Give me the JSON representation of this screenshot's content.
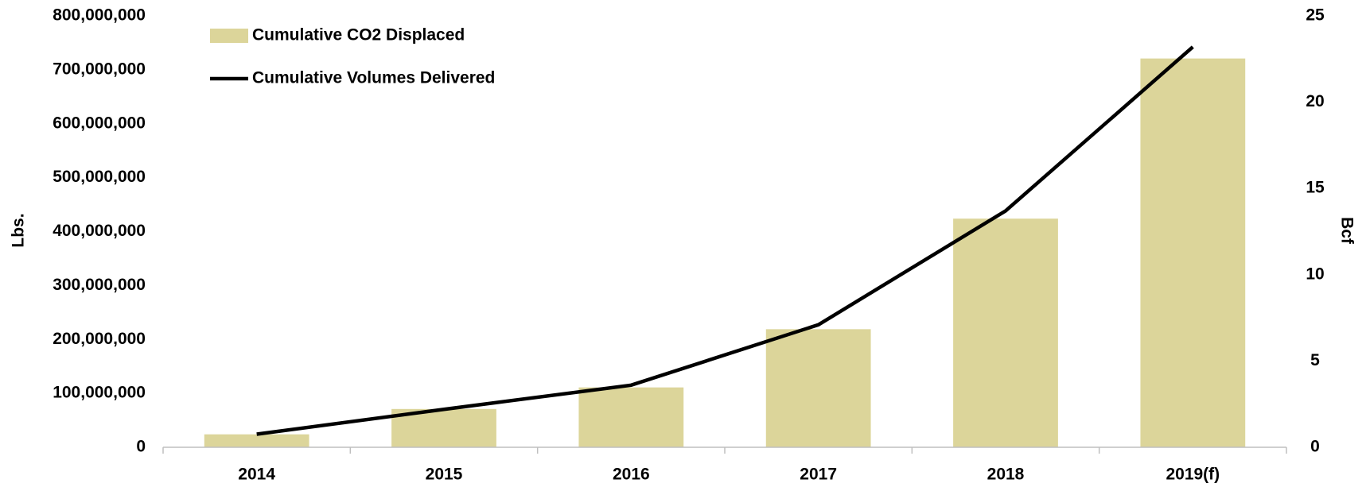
{
  "chart_data": {
    "type": "bar",
    "categories": [
      "2014",
      "2015",
      "2016",
      "2017",
      "2018",
      "2019(f)"
    ],
    "ylabel": "Lbs.",
    "y2label": "Bcf",
    "series": [
      {
        "name": "Cumulative CO2 Displaced",
        "type": "bar",
        "color": "#dcd59a",
        "values": [
          24000000,
          71000000,
          111000000,
          219000000,
          424000000,
          721000000
        ]
      },
      {
        "name": "Cumulative Volumes Delivered",
        "type": "line",
        "axis": "y2",
        "color": "#000000",
        "values": [
          0.76,
          2.2,
          3.6,
          7.1,
          13.7,
          23.2
        ]
      }
    ],
    "ylim": [
      0,
      800000000
    ],
    "yticks": [
      0,
      {
        "value": 100000000,
        "label": "100,000,000"
      },
      {
        "value": 200000000,
        "label": "200,000,000"
      },
      {
        "value": 300000000,
        "label": "300,000,000"
      },
      {
        "value": 400000000,
        "label": "400,000,000"
      },
      {
        "value": 500000000,
        "label": "500,000,000"
      },
      {
        "value": 600000000,
        "label": "600,000,000"
      },
      {
        "value": 700000000,
        "label": "700,000,000"
      },
      {
        "value": 800000000,
        "label": "800,000,000"
      }
    ],
    "y2lim": [
      0,
      25
    ],
    "y2ticks": [
      0,
      5,
      10,
      15,
      20,
      25
    ],
    "legend": "upper left"
  }
}
